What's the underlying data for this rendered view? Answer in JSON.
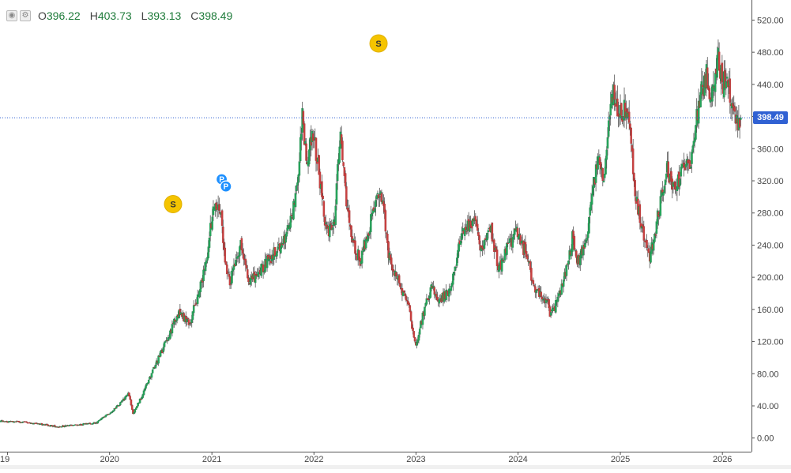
{
  "legend": {
    "open_label": "O",
    "open": "396.22",
    "high_label": "H",
    "high": "403.73",
    "low_label": "L",
    "low": "393.13",
    "close_label": "C",
    "close": "398.49",
    "buttons": [
      {
        "icon": "eye-icon",
        "glyph": "◉"
      },
      {
        "icon": "settings-icon",
        "glyph": "⚙"
      }
    ]
  },
  "colors": {
    "up": "#26a65b",
    "down": "#c94040",
    "wick": "#555555",
    "last_price_line": "#3061d3",
    "marker_s": "#f5c400",
    "marker_p": "#1e90ff"
  },
  "last_price": {
    "value": 398.49,
    "label": "398.49"
  },
  "markers": [
    {
      "type": "S",
      "label": "S",
      "date": "2020-08-15",
      "price": 291
    },
    {
      "type": "S",
      "label": "S",
      "date": "2022-08-20",
      "price": 491
    },
    {
      "type": "P",
      "label": "P",
      "date": "2021-02-05",
      "price": 322
    },
    {
      "type": "P",
      "label": "P",
      "date": "2021-02-20",
      "price": 313
    }
  ],
  "chart_data": {
    "type": "candlestick",
    "title": "",
    "xlabel": "",
    "ylabel": "",
    "ylim": [
      -17,
      545
    ],
    "yticks": [
      0,
      40,
      80,
      120,
      160,
      200,
      240,
      280,
      320,
      360,
      400,
      440,
      480,
      520
    ],
    "ytick_labels": [
      "0.00",
      "40.00",
      "80.00",
      "120.00",
      "160.00",
      "200.00",
      "240.00",
      "280.00",
      "320.00",
      "360.00",
      "400.00",
      "440.00",
      "480.00",
      "520.00"
    ],
    "xticks": [
      {
        "date": "2019-01-01",
        "label": "19"
      },
      {
        "date": "2020-01-01",
        "label": "2020"
      },
      {
        "date": "2021-01-01",
        "label": "2021"
      },
      {
        "date": "2022-01-01",
        "label": "2022"
      },
      {
        "date": "2023-01-01",
        "label": "2023"
      },
      {
        "date": "2024-01-01",
        "label": "2024"
      },
      {
        "date": "2025-01-01",
        "label": "2025"
      },
      {
        "date": "2026-01-01",
        "label": "2026"
      }
    ],
    "xrange": [
      "2018-12-05",
      "2026-04-15"
    ],
    "grid": false,
    "price_path": [
      [
        "2018-12-05",
        21
      ],
      [
        "2019-03-01",
        20
      ],
      [
        "2019-05-01",
        17
      ],
      [
        "2019-07-01",
        14
      ],
      [
        "2019-09-01",
        16
      ],
      [
        "2019-11-15",
        19
      ],
      [
        "2020-01-20",
        36
      ],
      [
        "2020-03-10",
        55
      ],
      [
        "2020-03-25",
        30
      ],
      [
        "2020-04-25",
        52
      ],
      [
        "2020-06-25",
        100
      ],
      [
        "2020-07-25",
        122
      ],
      [
        "2020-09-01",
        156
      ],
      [
        "2020-10-15",
        143
      ],
      [
        "2020-12-10",
        215
      ],
      [
        "2020-12-31",
        270
      ],
      [
        "2021-01-15",
        290
      ],
      [
        "2021-02-01",
        285
      ],
      [
        "2021-02-15",
        230
      ],
      [
        "2021-03-05",
        192
      ],
      [
        "2021-03-25",
        222
      ],
      [
        "2021-04-15",
        242
      ],
      [
        "2021-05-15",
        192
      ],
      [
        "2021-07-15",
        218
      ],
      [
        "2021-09-15",
        245
      ],
      [
        "2021-10-15",
        275
      ],
      [
        "2021-11-05",
        330
      ],
      [
        "2021-11-20",
        400
      ],
      [
        "2021-12-05",
        350
      ],
      [
        "2021-12-31",
        380
      ],
      [
        "2022-01-25",
        312
      ],
      [
        "2022-02-15",
        255
      ],
      [
        "2022-03-15",
        270
      ],
      [
        "2022-04-05",
        380
      ],
      [
        "2022-04-25",
        300
      ],
      [
        "2022-05-15",
        245
      ],
      [
        "2022-06-15",
        222
      ],
      [
        "2022-07-15",
        255
      ],
      [
        "2022-08-15",
        305
      ],
      [
        "2022-09-05",
        292
      ],
      [
        "2022-09-25",
        230
      ],
      [
        "2022-10-25",
        198
      ],
      [
        "2022-12-05",
        168
      ],
      [
        "2022-12-31",
        112
      ],
      [
        "2023-01-20",
        145
      ],
      [
        "2023-02-25",
        190
      ],
      [
        "2023-03-25",
        170
      ],
      [
        "2023-05-05",
        185
      ],
      [
        "2023-06-15",
        255
      ],
      [
        "2023-07-25",
        272
      ],
      [
        "2023-08-25",
        235
      ],
      [
        "2023-09-25",
        262
      ],
      [
        "2023-10-25",
        210
      ],
      [
        "2023-11-25",
        238
      ],
      [
        "2023-12-25",
        255
      ],
      [
        "2024-02-05",
        225
      ],
      [
        "2024-02-25",
        190
      ],
      [
        "2024-04-15",
        170
      ],
      [
        "2024-04-25",
        150
      ],
      [
        "2024-05-25",
        175
      ],
      [
        "2024-06-25",
        215
      ],
      [
        "2024-07-15",
        252
      ],
      [
        "2024-07-30",
        215
      ],
      [
        "2024-08-30",
        245
      ],
      [
        "2024-10-10",
        345
      ],
      [
        "2024-11-05",
        325
      ],
      [
        "2024-12-01",
        432
      ],
      [
        "2024-12-31",
        400
      ],
      [
        "2025-01-25",
        415
      ],
      [
        "2025-02-25",
        300
      ],
      [
        "2025-03-25",
        250
      ],
      [
        "2025-04-15",
        222
      ],
      [
        "2025-05-15",
        275
      ],
      [
        "2025-06-15",
        335
      ],
      [
        "2025-07-15",
        310
      ],
      [
        "2025-08-15",
        340
      ],
      [
        "2025-09-15",
        345
      ],
      [
        "2025-10-10",
        425
      ],
      [
        "2025-11-05",
        450
      ],
      [
        "2025-11-25",
        420
      ],
      [
        "2025-12-15",
        480
      ],
      [
        "2025-12-31",
        445
      ],
      [
        "2026-01-20",
        435
      ],
      [
        "2026-02-10",
        410
      ],
      [
        "2026-02-25",
        390
      ],
      [
        "2026-03-10",
        398
      ]
    ]
  }
}
